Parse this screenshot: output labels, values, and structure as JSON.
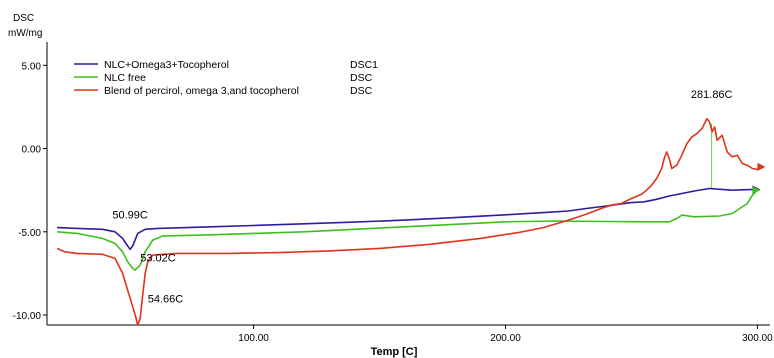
{
  "chart_data": {
    "type": "line",
    "ylabel_line1": "DSC",
    "ylabel_line2": "mW/mg",
    "xlabel": "Temp  [C]",
    "xlim": [
      18,
      305
    ],
    "ylim": [
      -10.6,
      6.4
    ],
    "x_ticks": [
      {
        "value": 100,
        "label": "100.00"
      },
      {
        "value": 200,
        "label": "200.00"
      },
      {
        "value": 300,
        "label": "300.00"
      }
    ],
    "y_ticks": [
      {
        "value": 5,
        "label": "5.00"
      },
      {
        "value": 0,
        "label": "0.00"
      },
      {
        "value": -5,
        "label": "-5.00"
      },
      {
        "value": -10,
        "label": "-10.00"
      }
    ],
    "legend_position": "top-left",
    "series": [
      {
        "name": "NLC+Omega3+Tocopherol",
        "tag": "DSC1",
        "color": "#2d1d9a",
        "points": [
          [
            22,
            -4.75
          ],
          [
            30,
            -4.8
          ],
          [
            40,
            -4.85
          ],
          [
            45,
            -5.0
          ],
          [
            48,
            -5.4
          ],
          [
            50,
            -5.85
          ],
          [
            51,
            -6.05
          ],
          [
            52,
            -5.85
          ],
          [
            54,
            -5.1
          ],
          [
            57,
            -4.85
          ],
          [
            62,
            -4.8
          ],
          [
            80,
            -4.72
          ],
          [
            100,
            -4.62
          ],
          [
            120,
            -4.52
          ],
          [
            140,
            -4.42
          ],
          [
            160,
            -4.3
          ],
          [
            180,
            -4.15
          ],
          [
            200,
            -3.98
          ],
          [
            215,
            -3.85
          ],
          [
            225,
            -3.75
          ],
          [
            232,
            -3.6
          ],
          [
            240,
            -3.45
          ],
          [
            250,
            -3.25
          ],
          [
            255,
            -3.2
          ],
          [
            260,
            -3.05
          ],
          [
            265,
            -2.85
          ],
          [
            270,
            -2.7
          ],
          [
            275,
            -2.55
          ],
          [
            281,
            -2.4
          ],
          [
            290,
            -2.5
          ],
          [
            300,
            -2.45
          ]
        ]
      },
      {
        "name": "NLC free",
        "tag": "DSC",
        "color": "#3dbf1e",
        "points": [
          [
            22,
            -5.0
          ],
          [
            30,
            -5.1
          ],
          [
            40,
            -5.4
          ],
          [
            45,
            -5.7
          ],
          [
            48,
            -6.2
          ],
          [
            50,
            -6.8
          ],
          [
            52,
            -7.2
          ],
          [
            53,
            -7.3
          ],
          [
            55,
            -7.0
          ],
          [
            57,
            -6.2
          ],
          [
            60,
            -5.5
          ],
          [
            64,
            -5.25
          ],
          [
            80,
            -5.2
          ],
          [
            100,
            -5.1
          ],
          [
            120,
            -5.0
          ],
          [
            140,
            -4.85
          ],
          [
            160,
            -4.7
          ],
          [
            180,
            -4.55
          ],
          [
            200,
            -4.4
          ],
          [
            220,
            -4.35
          ],
          [
            240,
            -4.38
          ],
          [
            255,
            -4.4
          ],
          [
            265,
            -4.4
          ],
          [
            268,
            -4.2
          ],
          [
            270,
            -4.0
          ],
          [
            275,
            -4.1
          ],
          [
            285,
            -4.05
          ],
          [
            290,
            -3.9
          ],
          [
            293,
            -3.6
          ],
          [
            296,
            -3.3
          ],
          [
            298,
            -2.8
          ],
          [
            300,
            -2.5
          ]
        ]
      },
      {
        "name": "Blend of percirol, omega 3,and tocopherol",
        "tag": "DSC",
        "color": "#e0341a",
        "points": [
          [
            22,
            -6.0
          ],
          [
            25,
            -6.2
          ],
          [
            30,
            -6.3
          ],
          [
            40,
            -6.35
          ],
          [
            45,
            -6.6
          ],
          [
            48,
            -7.5
          ],
          [
            50,
            -8.5
          ],
          [
            52,
            -9.5
          ],
          [
            53,
            -10.0
          ],
          [
            54,
            -10.6
          ],
          [
            55,
            -10.2
          ],
          [
            56,
            -8.8
          ],
          [
            57,
            -7.5
          ],
          [
            58,
            -6.8
          ],
          [
            60,
            -6.4
          ],
          [
            70,
            -6.3
          ],
          [
            90,
            -6.3
          ],
          [
            110,
            -6.25
          ],
          [
            130,
            -6.15
          ],
          [
            150,
            -6.0
          ],
          [
            170,
            -5.75
          ],
          [
            190,
            -5.4
          ],
          [
            205,
            -5.05
          ],
          [
            215,
            -4.75
          ],
          [
            225,
            -4.3
          ],
          [
            232,
            -3.95
          ],
          [
            238,
            -3.6
          ],
          [
            242,
            -3.4
          ],
          [
            246,
            -3.3
          ],
          [
            250,
            -3.0
          ],
          [
            254,
            -2.75
          ],
          [
            256,
            -2.5
          ],
          [
            258,
            -2.2
          ],
          [
            260,
            -1.8
          ],
          [
            262,
            -1.2
          ],
          [
            263,
            -0.6
          ],
          [
            264,
            -0.2
          ],
          [
            265,
            -0.6
          ],
          [
            266,
            -1.2
          ],
          [
            268,
            -1.0
          ],
          [
            270,
            -0.4
          ],
          [
            272,
            0.3
          ],
          [
            274,
            0.7
          ],
          [
            276,
            0.9
          ],
          [
            278,
            1.2
          ],
          [
            279,
            1.5
          ],
          [
            280,
            1.8
          ],
          [
            281,
            1.6
          ],
          [
            282,
            1.0
          ],
          [
            283,
            1.3
          ],
          [
            284,
            0.5
          ],
          [
            286,
            0.8
          ],
          [
            288,
            -0.2
          ],
          [
            290,
            -0.5
          ],
          [
            292,
            -0.4
          ],
          [
            294,
            -0.9
          ],
          [
            296,
            -1.0
          ],
          [
            298,
            -1.2
          ],
          [
            300,
            -1.25
          ],
          [
            302,
            -1.1
          ]
        ]
      }
    ],
    "annotations": [
      {
        "text": "50.99C",
        "x": 51,
        "y": -4.2,
        "anchor": "middle"
      },
      {
        "text": "53.02C",
        "x": 55,
        "y": -6.8,
        "anchor": "start"
      },
      {
        "text": "54.66C",
        "x": 58,
        "y": -9.25,
        "anchor": "start"
      },
      {
        "text": "281.86C",
        "x": 281.86,
        "y": 3.05,
        "anchor": "middle"
      }
    ],
    "peak_marker": {
      "x": 281.86,
      "y_from": 1.5,
      "y_to": -2.4,
      "color": "#3dbf1e"
    }
  }
}
